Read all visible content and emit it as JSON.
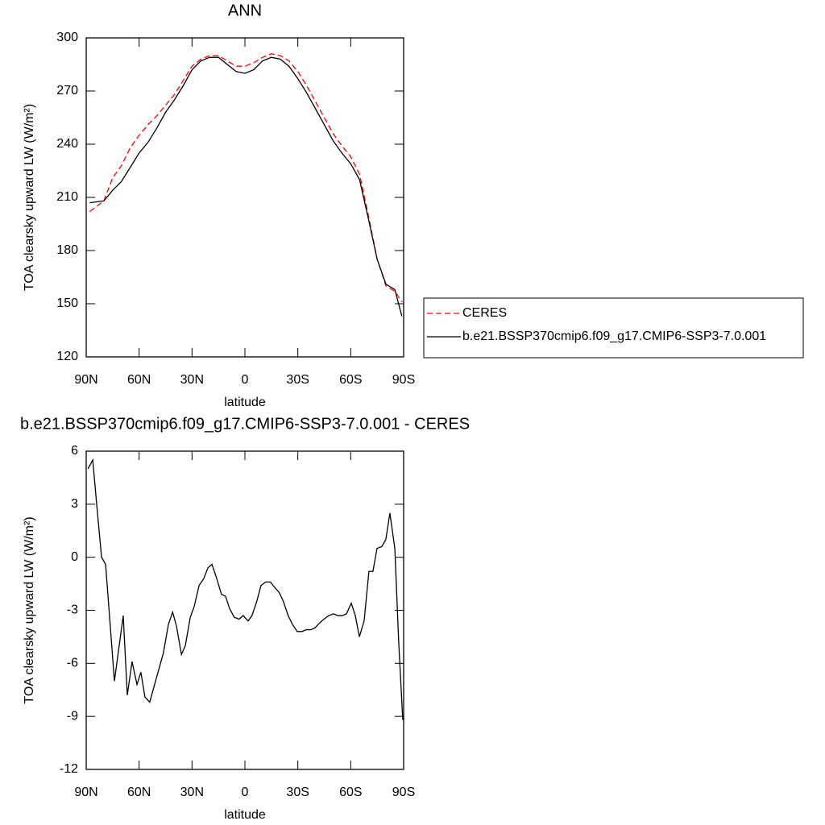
{
  "chart_data": [
    {
      "type": "line",
      "title": "ANN",
      "xlabel": "latitude",
      "ylabel": "TOA clearsky upward LW (W/m²)",
      "x": [
        88,
        80,
        75,
        70,
        65,
        60,
        55,
        50,
        45,
        40,
        35,
        30,
        25,
        20,
        15,
        10,
        5,
        0,
        -5,
        -10,
        -15,
        -20,
        -25,
        -30,
        -35,
        -40,
        -45,
        -50,
        -55,
        -60,
        -65,
        -70,
        -75,
        -80,
        -85,
        -89
      ],
      "series": [
        {
          "name": "CERES",
          "color": "#ff0000",
          "dashed": true,
          "values": [
            202,
            208,
            221,
            228,
            238,
            245,
            251,
            256,
            262,
            268,
            276,
            284,
            288,
            290,
            290,
            287,
            284,
            284,
            286,
            289,
            291,
            290,
            287,
            281,
            273,
            264,
            255,
            246,
            239,
            233,
            223,
            200,
            175,
            160,
            157,
            151
          ]
        },
        {
          "name": "b.e21.BSSP370cmip6.f09_g17.CMIP6-SSP3-7.0.001",
          "color": "#000000",
          "dashed": false,
          "values": [
            207,
            208,
            214,
            219,
            227,
            235,
            241,
            249,
            258,
            265,
            273,
            282,
            287,
            289,
            289,
            285,
            281,
            280,
            282,
            287,
            289,
            288,
            284,
            277,
            269,
            260,
            251,
            242,
            235,
            229,
            220,
            198,
            175,
            161,
            158,
            143
          ]
        }
      ],
      "xlim": [
        90,
        -90
      ],
      "xticks": [
        {
          "value": 90,
          "label": "90N"
        },
        {
          "value": 60,
          "label": "60N"
        },
        {
          "value": 30,
          "label": "30N"
        },
        0,
        {
          "value": -30,
          "label": "30S"
        },
        {
          "value": -60,
          "label": "60S"
        },
        {
          "value": -90,
          "label": "90S"
        }
      ],
      "ylim": [
        120,
        300
      ],
      "yticks": [
        120,
        150,
        180,
        210,
        240,
        270,
        300
      ],
      "legend": "outside-right"
    },
    {
      "type": "line",
      "title": "b.e21.BSSP370cmip6.f09_g17.CMIP6-SSP3-7.0.001 - CERES",
      "xlabel": "latitude",
      "ylabel": "TOA clearsky upward LW (W/m²)",
      "x": [
        89,
        86.3,
        83.6,
        81.3,
        79,
        74,
        69,
        66.7,
        64,
        61.2,
        59,
        56.7,
        54,
        46.2,
        43.4,
        41,
        38.8,
        36,
        33.8,
        31,
        28.8,
        26,
        23.3,
        21,
        18.7,
        16,
        13.3,
        11,
        8.7,
        6,
        3.3,
        1,
        -1.8,
        -4,
        -6.7,
        -9.1,
        -11.8,
        -14.5,
        -16.8,
        -19.5,
        -21.8,
        -24.5,
        -27,
        -29.6,
        -32.4,
        -34.7,
        -37.4,
        -39.7,
        -42.5,
        -44.8,
        -47.5,
        -50.3,
        -52.6,
        -55.3,
        -57.6,
        -60.3,
        -62.6,
        -64.9,
        -67.6,
        -70.3,
        -72.6,
        -74.9,
        -77.6,
        -79.9,
        -82.2,
        -85,
        -87.3,
        -89.5
      ],
      "series": [
        {
          "color": "#000000",
          "dashed": false,
          "values": [
            5.0,
            5.5,
            2.5,
            0,
            -0.4,
            -7.0,
            -3.3,
            -7.8,
            -5.9,
            -7.2,
            -6.5,
            -7.9,
            -8.2,
            -5.4,
            -3.8,
            -3.1,
            -3.9,
            -5.5,
            -5.0,
            -3.4,
            -2.8,
            -1.6,
            -1.2,
            -0.6,
            -0.4,
            -1.2,
            -2.1,
            -2.2,
            -2.9,
            -3.4,
            -3.5,
            -3.3,
            -3.6,
            -3.3,
            -2.5,
            -1.6,
            -1.4,
            -1.4,
            -1.7,
            -2.0,
            -2.5,
            -3.3,
            -3.8,
            -4.2,
            -4.2,
            -4.1,
            -4.1,
            -4.0,
            -3.7,
            -3.5,
            -3.3,
            -3.2,
            -3.3,
            -3.3,
            -3.2,
            -2.6,
            -3.3,
            -4.5,
            -3.6,
            -0.8,
            -0.8,
            0.5,
            0.6,
            1.0,
            2.5,
            0.5,
            -5.0,
            -9.2
          ]
        }
      ],
      "xlim": [
        90,
        -90
      ],
      "xticks": [
        {
          "value": 90,
          "label": "90N"
        },
        {
          "value": 60,
          "label": "60N"
        },
        {
          "value": 30,
          "label": "30N"
        },
        0,
        {
          "value": -30,
          "label": "30S"
        },
        {
          "value": -60,
          "label": "60S"
        },
        {
          "value": -90,
          "label": "90S"
        }
      ],
      "ylim": [
        -12,
        6
      ],
      "yticks": [
        -12,
        -9,
        -6,
        -3,
        0,
        3,
        6
      ]
    }
  ]
}
